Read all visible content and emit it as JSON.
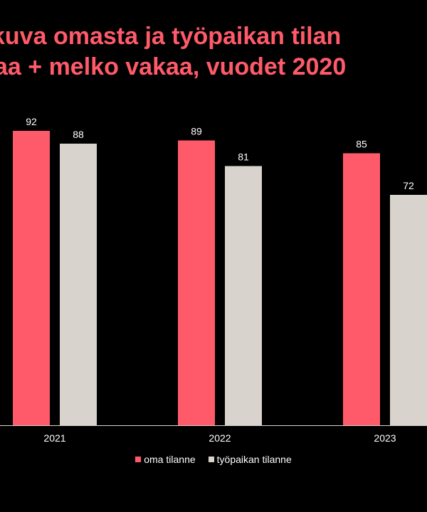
{
  "title_lines": [
    "kuva omasta ja työpaikan tilan",
    "aa + melko vakaa, vuodet 2020"
  ],
  "colors": {
    "background": "#000000",
    "title": "#ff5a6a",
    "oma": "#ff5a6a",
    "tyopaikka": "#d9d3cd",
    "text": "#ffffff"
  },
  "chart_data": {
    "type": "bar",
    "title": "kuva omasta ja työpaikan tilan aa + melko vakaa, vuodet 2020",
    "categories": [
      "2021",
      "2022",
      "2023"
    ],
    "series": [
      {
        "name": "oma tilanne",
        "values": [
          92,
          89,
          85
        ],
        "color": "#ff5a6a"
      },
      {
        "name": "työpaikan tilanne",
        "values": [
          88,
          81,
          72
        ],
        "color": "#d9d3cd"
      }
    ],
    "ylim": [
      0,
      100
    ],
    "grid": false,
    "legend_position": "bottom",
    "data_labels": true
  }
}
